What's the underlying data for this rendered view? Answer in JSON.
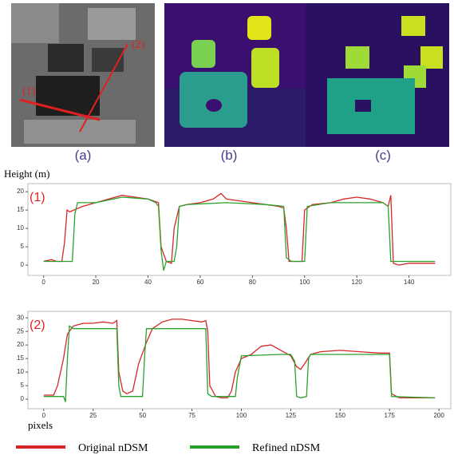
{
  "panels": [
    {
      "label": "(a)",
      "annotations": [
        "(1)",
        "(2)"
      ]
    },
    {
      "label": "(b)"
    },
    {
      "label": "(c)"
    }
  ],
  "chart_data": [
    {
      "type": "line",
      "ylabel": "Height (m)",
      "annotation": "(1)",
      "xlim": [
        -6,
        156
      ],
      "ylim": [
        -2.8,
        22.2
      ],
      "xticks": [
        0,
        20,
        40,
        60,
        80,
        100,
        120,
        140
      ],
      "yticks": [
        0,
        5,
        10,
        15,
        20
      ],
      "series": [
        {
          "name": "Original nDSM",
          "color": "#d62728",
          "x": [
            0,
            3,
            5,
            7,
            8,
            9,
            10,
            15,
            20,
            25,
            30,
            35,
            40,
            44,
            45,
            47,
            49,
            50,
            52,
            55,
            60,
            65,
            68,
            70,
            75,
            80,
            85,
            90,
            92,
            93,
            94,
            96,
            99,
            100,
            103,
            110,
            115,
            120,
            125,
            130,
            132,
            133,
            134,
            136,
            140,
            145,
            150
          ],
          "values": [
            1,
            1.5,
            1,
            1,
            6,
            15,
            14.5,
            16,
            17,
            18,
            19,
            18.5,
            18,
            17,
            5,
            1,
            0.5,
            10,
            16,
            16.5,
            17,
            18,
            19.5,
            18,
            17.5,
            17,
            16.5,
            16,
            15.5,
            10,
            1,
            1,
            1,
            15,
            16.5,
            17,
            18,
            18.5,
            18,
            17,
            16,
            19,
            0.5,
            0,
            0.5,
            0.5,
            0.5
          ]
        },
        {
          "name": "Refined nDSM",
          "color": "#2ca02c",
          "x": [
            0,
            10,
            11,
            12,
            13,
            20,
            30,
            40,
            43,
            44,
            45,
            46,
            47,
            50,
            51,
            52,
            55,
            70,
            85,
            92,
            93,
            95,
            100,
            101,
            110,
            130,
            132,
            133,
            140,
            150
          ],
          "values": [
            1,
            1,
            1,
            14,
            17,
            17,
            18.5,
            18,
            17,
            16,
            4,
            -1.5,
            1,
            1,
            5,
            16,
            16.5,
            17,
            16.5,
            16,
            2,
            1,
            1,
            16,
            17,
            17,
            16,
            1,
            1,
            1
          ]
        }
      ]
    },
    {
      "type": "line",
      "xlabel": "pixels",
      "annotation": "(2)",
      "xlim": [
        -8,
        206
      ],
      "ylim": [
        -3.5,
        32.4
      ],
      "xticks": [
        0,
        25,
        50,
        75,
        100,
        125,
        150,
        175,
        200
      ],
      "yticks": [
        0,
        5,
        10,
        15,
        20,
        25,
        30
      ],
      "series": [
        {
          "name": "Original nDSM",
          "color": "#d62728",
          "x": [
            0,
            5,
            7,
            10,
            12,
            15,
            20,
            25,
            30,
            35,
            37,
            38,
            40,
            42,
            45,
            48,
            52,
            55,
            60,
            65,
            70,
            75,
            80,
            82,
            83,
            84,
            87,
            90,
            93,
            95,
            97,
            100,
            105,
            110,
            115,
            120,
            125,
            128,
            130,
            132,
            135,
            140,
            150,
            160,
            170,
            175,
            176,
            180,
            190,
            198
          ],
          "values": [
            1.5,
            1.5,
            5,
            15,
            24,
            27,
            28,
            28,
            28.5,
            28,
            29,
            10,
            3,
            2,
            3,
            13,
            21,
            26,
            28.5,
            29.5,
            29.5,
            29,
            28.5,
            29,
            25,
            5,
            1,
            0.5,
            0.5,
            3,
            10,
            15,
            16.5,
            19.5,
            20,
            18,
            16,
            12,
            11,
            13,
            16.5,
            17.5,
            18,
            17.5,
            17,
            17,
            2,
            0.5,
            0.5,
            0.5
          ]
        },
        {
          "name": "Refined nDSM",
          "color": "#2ca02c",
          "x": [
            0,
            10,
            11,
            12,
            13,
            15,
            35,
            37,
            38,
            39,
            45,
            50,
            51,
            52,
            80,
            82,
            83,
            85,
            97,
            98,
            100,
            120,
            125,
            127,
            128,
            130,
            133,
            134,
            135,
            170,
            175,
            176,
            198
          ],
          "values": [
            1,
            1,
            -1,
            15,
            27,
            26,
            26,
            26,
            5,
            1,
            1,
            1,
            15,
            26,
            26,
            26,
            2,
            1,
            1,
            8,
            16,
            16.5,
            16.5,
            14,
            1,
            0.5,
            1,
            15,
            16.5,
            16.5,
            16.5,
            1,
            0.5
          ]
        }
      ]
    }
  ]
}
